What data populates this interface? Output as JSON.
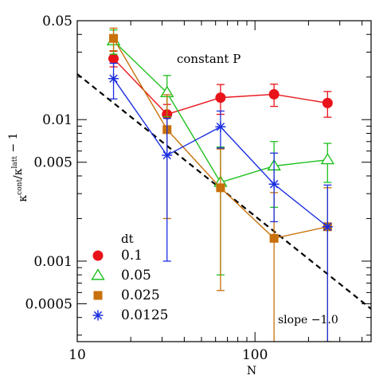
{
  "chart_data": {
    "type": "scatter",
    "title": "",
    "xlabel": "N",
    "ylabel_main": "κ",
    "ylabel_parts": [
      {
        "text": "κ",
        "sup": "cont"
      },
      {
        "text": "/κ",
        "sup": "latt"
      },
      {
        "text": " − 1",
        "sup": ""
      }
    ],
    "xscale": "log",
    "yscale": "log",
    "xlim": [
      10,
      450
    ],
    "ylim": [
      0.00027,
      0.05
    ],
    "x_ticks": [
      10,
      100
    ],
    "x_tick_labels": [
      "10",
      "100"
    ],
    "y_ticks": [
      0.0005,
      0.001,
      0.005,
      0.01,
      0.05
    ],
    "y_tick_labels": [
      "0.0005",
      "0.001",
      "0.005",
      "0.01",
      "0.05"
    ],
    "annotations": [
      {
        "text": "constant P",
        "x": 38,
        "y": 0.03
      },
      {
        "text": "slope −1.0",
        "x": 148,
        "y": 0.00033
      }
    ],
    "legend_title": "dt",
    "legend_position": "bottom-left",
    "reference_line": {
      "label": "slope −1.0",
      "slope": -1.0,
      "points": [
        [
          10,
          0.021
        ],
        [
          450,
          0.00046
        ]
      ],
      "style": "dashed",
      "color": "#000000"
    },
    "series": [
      {
        "name": "0.1",
        "color": "#e8141a",
        "marker": "circle-filled",
        "x": [
          16,
          32,
          64,
          128,
          256
        ],
        "y": [
          0.027,
          0.0109,
          0.0143,
          0.0151,
          0.0131
        ],
        "err_low": [
          0.0034,
          0.0019,
          0.0034,
          0.0027,
          0.0027
        ],
        "err_high": [
          0.0034,
          0.0019,
          0.0034,
          0.0027,
          0.0027
        ]
      },
      {
        "name": "0.05",
        "color": "#1ec01e",
        "marker": "triangle-open",
        "x": [
          16,
          32,
          64,
          128,
          256
        ],
        "y": [
          0.036,
          0.0155,
          0.0036,
          0.0047,
          0.0052
        ],
        "err_low": [
          0.007,
          0.005,
          0.0028,
          0.0023,
          0.0016
        ],
        "err_high": [
          0.007,
          0.005,
          0.0028,
          0.0023,
          0.0016
        ]
      },
      {
        "name": "0.025",
        "color": "#c8700a",
        "marker": "square-filled",
        "x": [
          16,
          32,
          64,
          128,
          256
        ],
        "y": [
          0.0375,
          0.0085,
          0.0033,
          0.00145,
          0.00175
        ],
        "err_low": [
          0.0068,
          0.0065,
          0.00268,
          0.0013,
          0.00148
        ],
        "err_high": [
          0.0068,
          0.0065,
          0.0029,
          0.0016,
          0.00155
        ]
      },
      {
        "name": "0.0125",
        "color": "#1c2fe0",
        "marker": "asterisk",
        "x": [
          16,
          32,
          64,
          128,
          256
        ],
        "y": [
          0.0195,
          0.0056,
          0.0089,
          0.0035,
          0.00175
        ],
        "err_low": [
          0.0055,
          0.0046,
          0.0026,
          0.0016,
          0.00152
        ],
        "err_high": [
          0.0055,
          0.0046,
          0.0026,
          0.0023,
          0.0017
        ]
      }
    ]
  }
}
